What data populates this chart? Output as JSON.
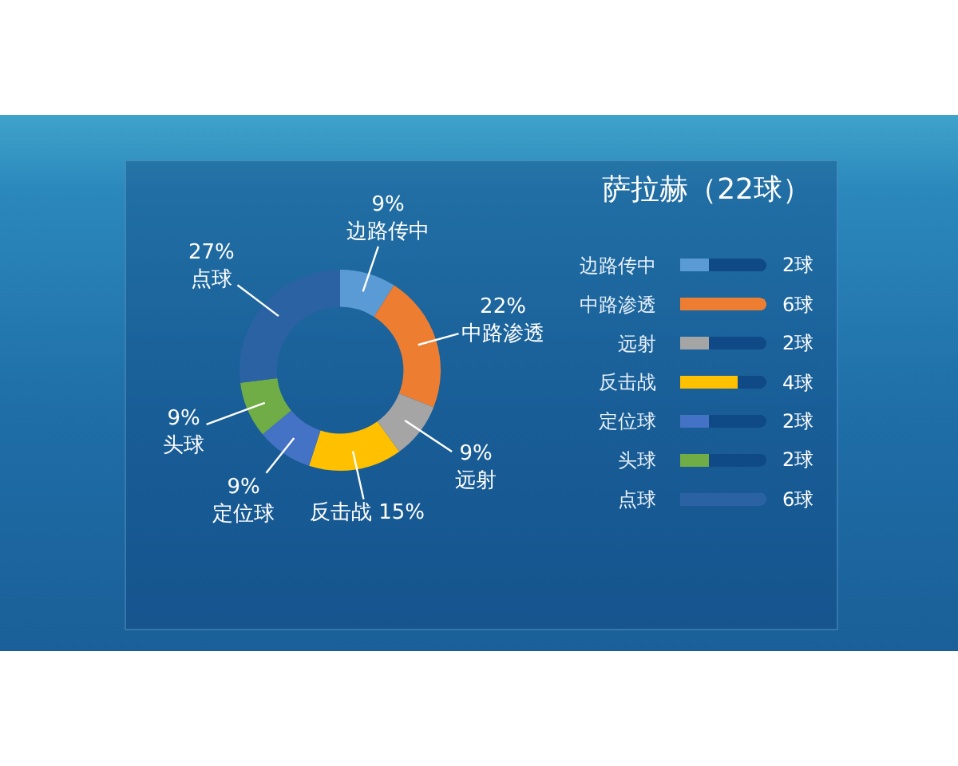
{
  "chart_data": [
    {
      "type": "donut",
      "categories": [
        "边路传中",
        "中路渗透",
        "远射",
        "反击战",
        "定位球",
        "头球",
        "点球"
      ],
      "values": [
        9,
        22,
        9,
        15,
        9,
        9,
        27
      ],
      "colors": [
        "#5b9bd5",
        "#ed7d31",
        "#a5a5a5",
        "#ffc000",
        "#4472c4",
        "#70ad47",
        "#2b62a3"
      ],
      "value_labels": [
        "9%",
        "22%",
        "9%",
        "15%",
        "9%",
        "9%",
        "27%"
      ]
    },
    {
      "type": "bar",
      "orientation": "horizontal",
      "stacked": true,
      "title": "萨拉赫（22球）",
      "categories": [
        "边路传中",
        "中路渗透",
        "远射",
        "反击战",
        "定位球",
        "头球",
        "点球"
      ],
      "series": [
        {
          "colors": [
            "#5b9bd5",
            "#ed7d31",
            "#a5a5a5",
            "#ffc000",
            "#4472c4",
            "#70ad47",
            "#2b62a3"
          ],
          "values": [
            2,
            6,
            2,
            4,
            2,
            2,
            6
          ],
          "value_labels": [
            "2球",
            "6球",
            "2球",
            "4球",
            "2球",
            "2球",
            "6球"
          ]
        },
        {
          "color": "#0f4a87",
          "values": [
            4,
            0,
            4,
            2,
            4,
            4,
            0
          ]
        }
      ],
      "xlim": [
        0,
        6
      ],
      "tick_labels": "y"
    }
  ]
}
